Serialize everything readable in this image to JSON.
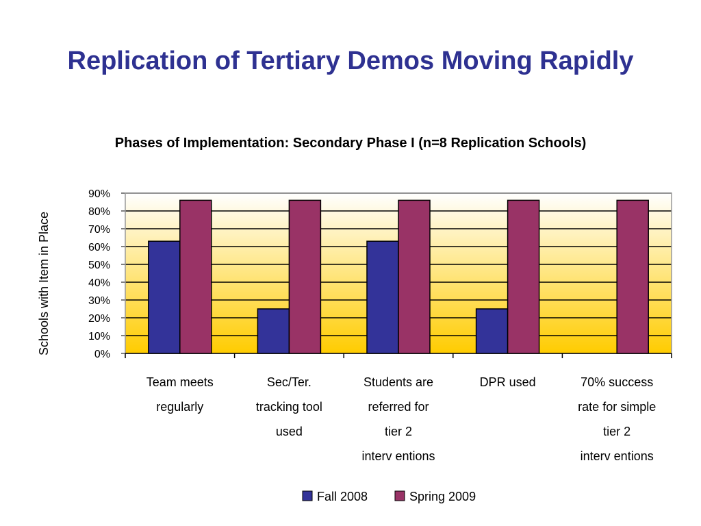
{
  "slide": {
    "title": "Replication of Tertiary Demos Moving Rapidly"
  },
  "chart_data": {
    "type": "bar",
    "title": "Phases of Implementation: Secondary Phase I (n=8 Replication Schools)",
    "ylabel": "Schools with Item in Place",
    "xlabel": "",
    "ylim": [
      0,
      90
    ],
    "y_ticks": [
      "0%",
      "10%",
      "20%",
      "30%",
      "40%",
      "50%",
      "60%",
      "70%",
      "80%",
      "90%"
    ],
    "categories": [
      [
        "Team meets",
        "regularly"
      ],
      [
        "Sec/Ter.",
        "tracking tool",
        "used"
      ],
      [
        "Students are",
        "referred for",
        "tier 2",
        "interv entions"
      ],
      [
        "DPR used"
      ],
      [
        "70% success",
        "rate for simple",
        "tier 2",
        "interv entions"
      ]
    ],
    "series": [
      {
        "name": "Fall 2008",
        "color": "#333399",
        "values": [
          63,
          25,
          63,
          25,
          0
        ]
      },
      {
        "name": "Spring 2009",
        "color": "#993366",
        "values": [
          86,
          86,
          86,
          86,
          86
        ]
      }
    ],
    "grid": true,
    "legend": "bottom",
    "background_gradient": [
      "#FFFFFF",
      "#FFCC00"
    ]
  }
}
